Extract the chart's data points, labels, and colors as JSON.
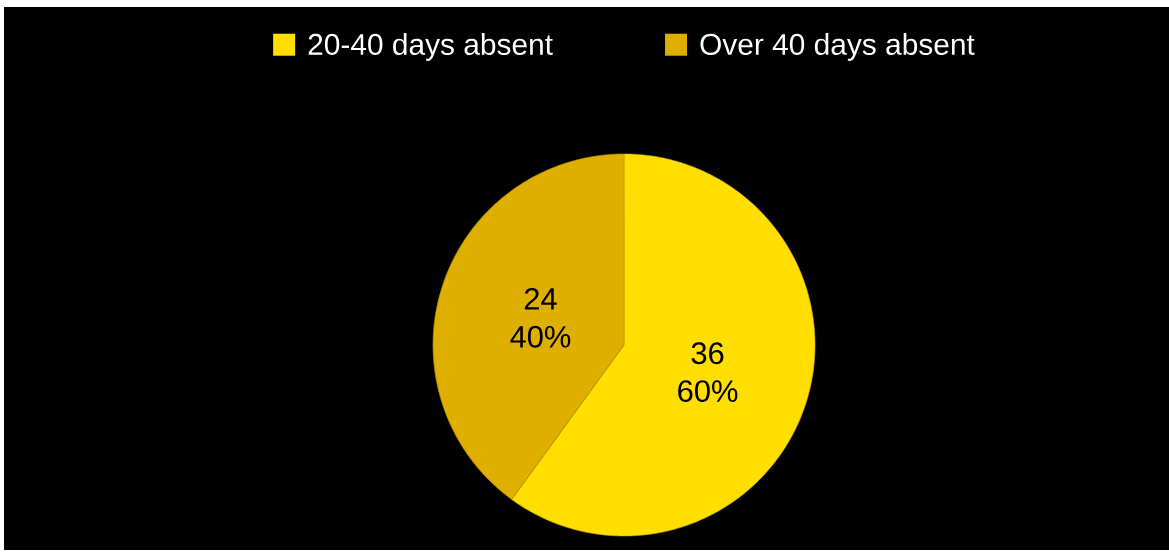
{
  "chart_data": {
    "type": "pie",
    "categories": [
      "20-40 days absent",
      "Over 40 days absent"
    ],
    "values": [
      36,
      24
    ],
    "colors": [
      "#ffde00",
      "#dfaf00"
    ],
    "value_labels": [
      "36 60%",
      "24 40%"
    ],
    "legend": "top"
  }
}
